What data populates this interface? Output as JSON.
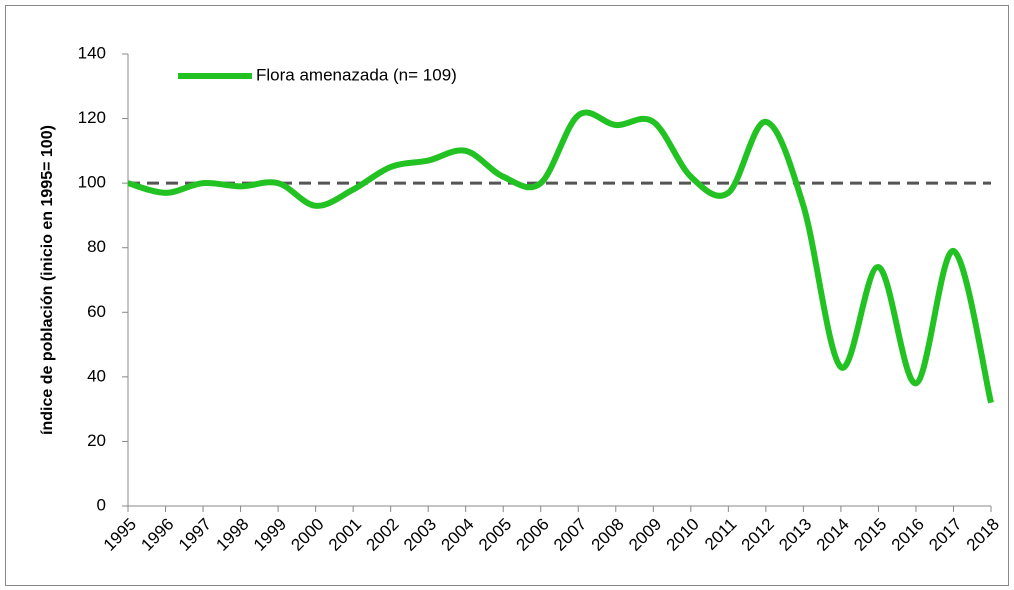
{
  "chart_data": {
    "type": "line",
    "y_label": "índice de población (inicio en 1995= 100)",
    "categories": [
      "1995",
      "1996",
      "1997",
      "1998",
      "1999",
      "2000",
      "2001",
      "2002",
      "2003",
      "2004",
      "2005",
      "2006",
      "2007",
      "2008",
      "2009",
      "2010",
      "2011",
      "2012",
      "2013",
      "2014",
      "2015",
      "2016",
      "2017",
      "2018"
    ],
    "series": [
      {
        "name": "Flora amenazada (n= 109)",
        "color": "#22c222",
        "values": [
          100,
          97,
          100,
          99,
          100,
          93,
          98,
          105,
          107,
          110,
          102,
          100,
          121,
          118,
          119,
          102,
          97,
          119,
          93,
          43,
          74,
          38,
          79,
          32
        ]
      }
    ],
    "reference_line": 100,
    "ylim": [
      0,
      140
    ],
    "yticks": [
      0,
      20,
      40,
      60,
      80,
      100,
      120,
      140
    ]
  }
}
